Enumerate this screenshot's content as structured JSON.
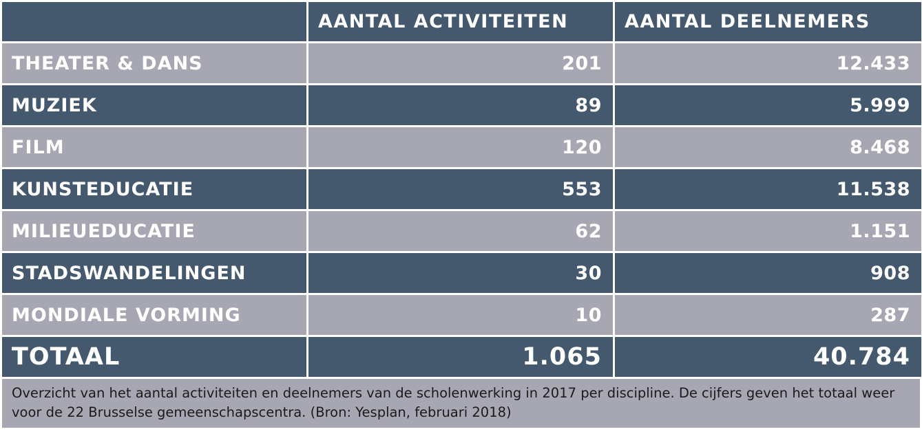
{
  "table": {
    "headers": [
      "",
      "AANTAL ACTIVITEITEN",
      "AANTAL DEELNEMERS"
    ],
    "rows": [
      {
        "discipline": "THEATER & DANS",
        "activiteiten": "201",
        "deelnemers": "12.433"
      },
      {
        "discipline": "MUZIEK",
        "activiteiten": "89",
        "deelnemers": "5.999"
      },
      {
        "discipline": "FILM",
        "activiteiten": "120",
        "deelnemers": "8.468"
      },
      {
        "discipline": "KUNSTEDUCATIE",
        "activiteiten": "553",
        "deelnemers": "11.538"
      },
      {
        "discipline": "MILIEUEDUCATIE",
        "activiteiten": "62",
        "deelnemers": "1.151"
      },
      {
        "discipline": "STADSWANDELINGEN",
        "activiteiten": "30",
        "deelnemers": "908"
      },
      {
        "discipline": "MONDIALE VORMING",
        "activiteiten": "10",
        "deelnemers": "287"
      }
    ],
    "total": {
      "label": "TOTAAL",
      "activiteiten": "1.065",
      "deelnemers": "40.784"
    }
  },
  "caption": "Overzicht van het aantal activiteiten en deelnemers van de scholenwerking in 2017 per discipline. De cijfers geven het totaal weer voor de 22 Brusselse gemeenschapscentra. (Bron: Yesplan, februari 2018)",
  "colors": {
    "dark_row": "#44596d",
    "light_row": "#a7a7b4",
    "text_light": "#ffffff",
    "caption_text": "#1a1a1a"
  }
}
